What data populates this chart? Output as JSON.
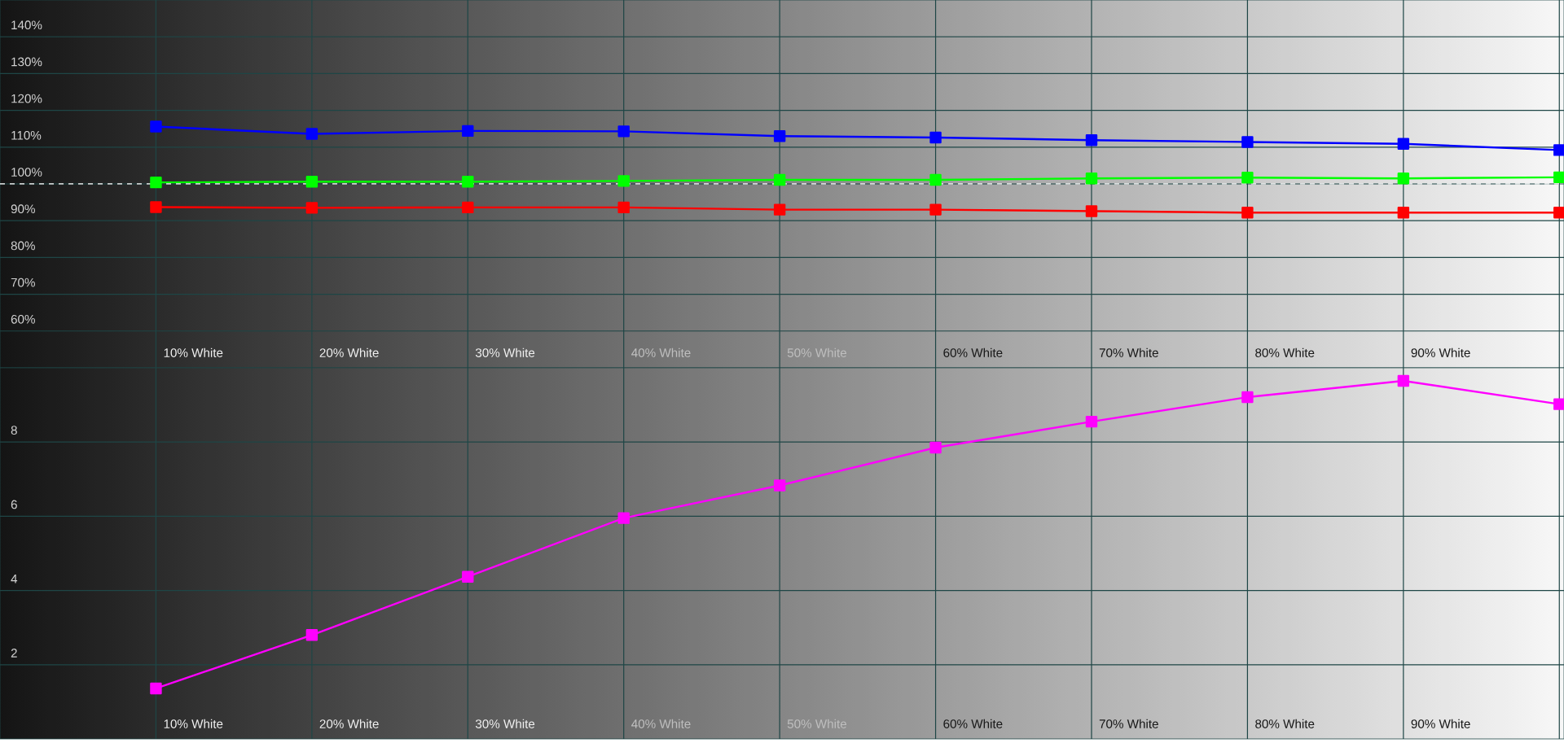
{
  "chart_data": [
    {
      "type": "line",
      "categories": [
        "10% White",
        "20% White",
        "30% White",
        "40% White",
        "50% White",
        "60% White",
        "70% White",
        "80% White",
        "90% White",
        null
      ],
      "series": [
        {
          "color": "#0000ff",
          "values": [
            115.6,
            113.6,
            114.4,
            114.3,
            113.0,
            112.6,
            111.9,
            111.4,
            110.9,
            109.2
          ]
        },
        {
          "color": "#00ff00",
          "values": [
            100.4,
            100.6,
            100.6,
            100.8,
            101.1,
            101.1,
            101.5,
            101.7,
            101.5,
            101.8
          ]
        },
        {
          "color": "#ff0000",
          "values": [
            93.7,
            93.5,
            93.6,
            93.6,
            93.0,
            93.0,
            92.6,
            92.2,
            92.2,
            92.2
          ]
        }
      ],
      "ylim": [
        50,
        150
      ],
      "yticks": [
        {
          "value": 60,
          "label": "60%"
        },
        {
          "value": 70,
          "label": "70%"
        },
        {
          "value": 80,
          "label": "80%"
        },
        {
          "value": 90,
          "label": "90%"
        },
        {
          "value": 100,
          "label": "100%"
        },
        {
          "value": 110,
          "label": "110%"
        },
        {
          "value": 120,
          "label": "120%"
        },
        {
          "value": 130,
          "label": "130%"
        },
        {
          "value": 140,
          "label": "140%"
        }
      ],
      "ref_lines": [
        {
          "axis": "y",
          "value": 100,
          "color": "#ffffff",
          "line_style": "dashed"
        }
      ],
      "grid": true,
      "marker": "square",
      "line_style": "solid"
    },
    {
      "type": "line",
      "categories": [
        "10% White",
        "20% White",
        "30% White",
        "40% White",
        "50% White",
        "60% White",
        "70% White",
        "80% White",
        "90% White",
        null
      ],
      "series": [
        {
          "color": "#ff00ff",
          "values": [
            1.36,
            2.8,
            4.37,
            5.95,
            6.83,
            7.85,
            8.55,
            9.21,
            9.65,
            9.02
          ]
        }
      ],
      "ylim": [
        0,
        10
      ],
      "yticks": [
        2,
        4,
        6,
        8
      ],
      "grid": true,
      "marker": "square",
      "line_style": "solid"
    }
  ]
}
